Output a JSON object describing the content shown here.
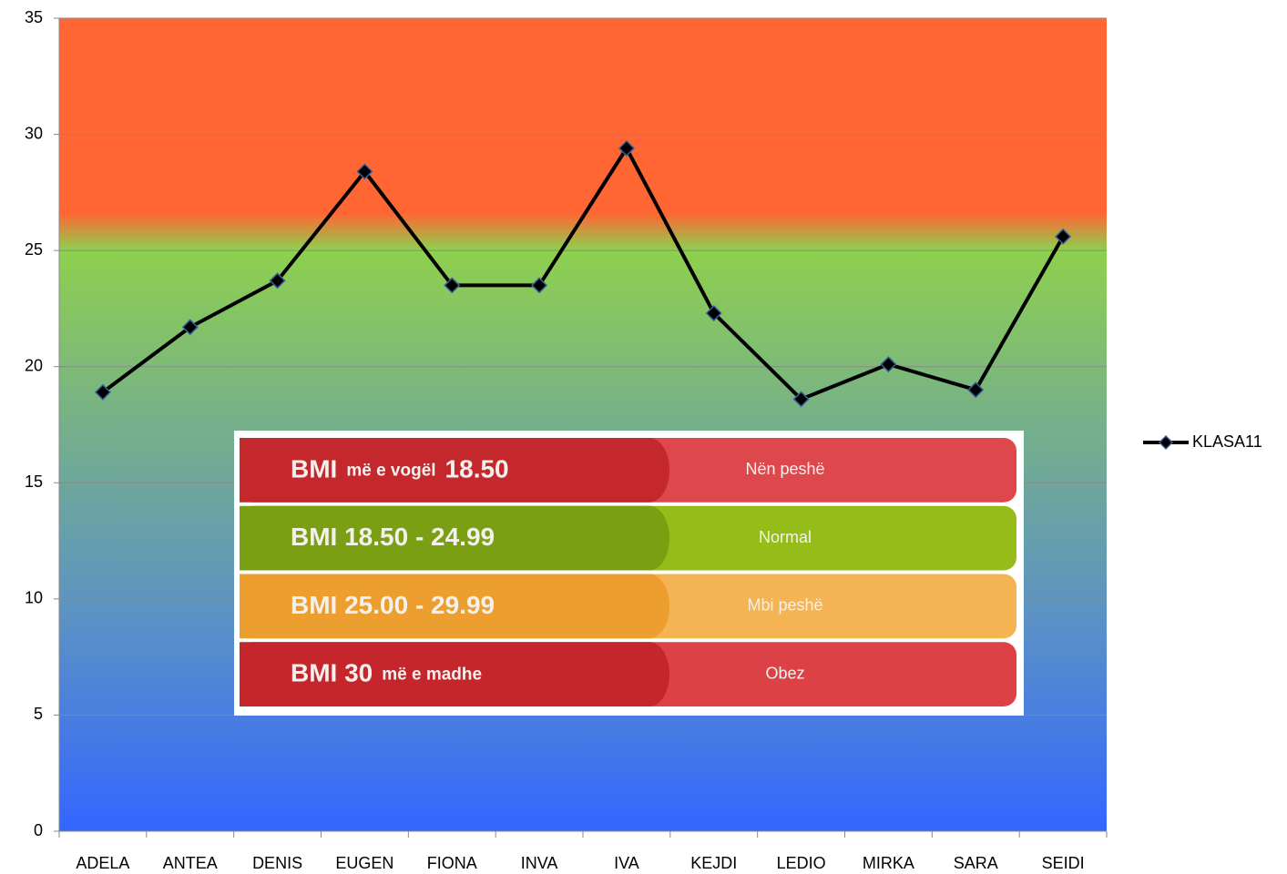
{
  "chart_data": {
    "type": "line",
    "categories": [
      "ADELA",
      "ANTEA",
      "DENIS",
      "EUGEN",
      "FIONA",
      "INVA",
      "IVA",
      "KEJDI",
      "LEDIO",
      "MIRKA",
      "SARA",
      "SEIDI"
    ],
    "series": [
      {
        "name": "KLASA11",
        "color": "#000000",
        "values": [
          18.9,
          21.7,
          23.7,
          28.4,
          23.5,
          23.5,
          29.4,
          22.3,
          18.6,
          20.1,
          19.0,
          25.6
        ]
      }
    ],
    "ylim": [
      0,
      35
    ],
    "yticks": [
      0,
      5,
      10,
      15,
      20,
      25,
      30,
      35
    ],
    "grid": true,
    "legend": "right",
    "annotations": [
      [
        "BMI",
        "më e vogël",
        "18.50",
        "Nën peshë"
      ],
      [
        "BMI 18.50 - 24.99",
        "Normal"
      ],
      [
        "BMI 25.00 - 29.99",
        "Mbi peshë"
      ],
      [
        "BMI 30",
        "më e madhe",
        "Obez"
      ]
    ]
  }
}
